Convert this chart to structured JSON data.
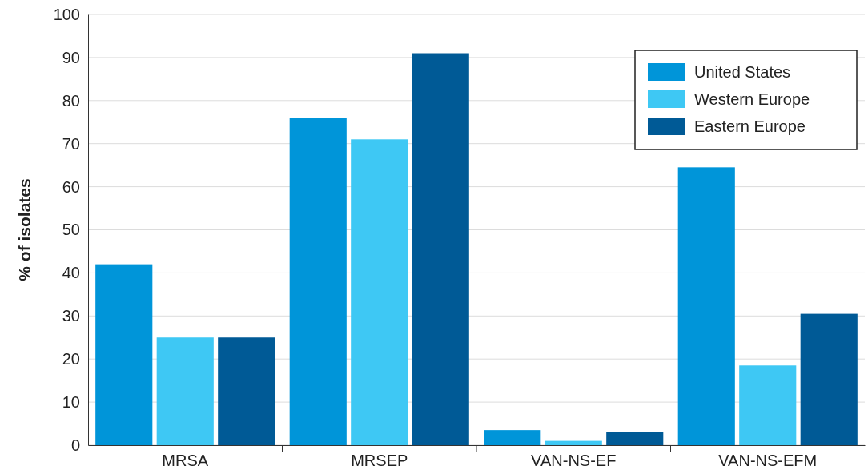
{
  "chart_data": {
    "type": "bar",
    "ylabel": "% of isolates",
    "categories": [
      "MRSA",
      "MRSEP",
      "VAN-NS-EF",
      "VAN-NS-EFM"
    ],
    "series": [
      {
        "name": "United States",
        "color": "#0095d9",
        "values": [
          42,
          76,
          3.5,
          64.5
        ]
      },
      {
        "name": "Western Europe",
        "color": "#3ec8f4",
        "values": [
          25,
          71,
          1,
          18.5
        ]
      },
      {
        "name": "Eastern Europe",
        "color": "#005a96",
        "values": [
          25,
          91,
          3,
          30.5
        ]
      }
    ],
    "ylim": [
      0,
      100
    ],
    "yticks": [
      0,
      10,
      20,
      30,
      40,
      50,
      60,
      70,
      80,
      90,
      100
    ],
    "grid": "y",
    "legend": "top right"
  }
}
